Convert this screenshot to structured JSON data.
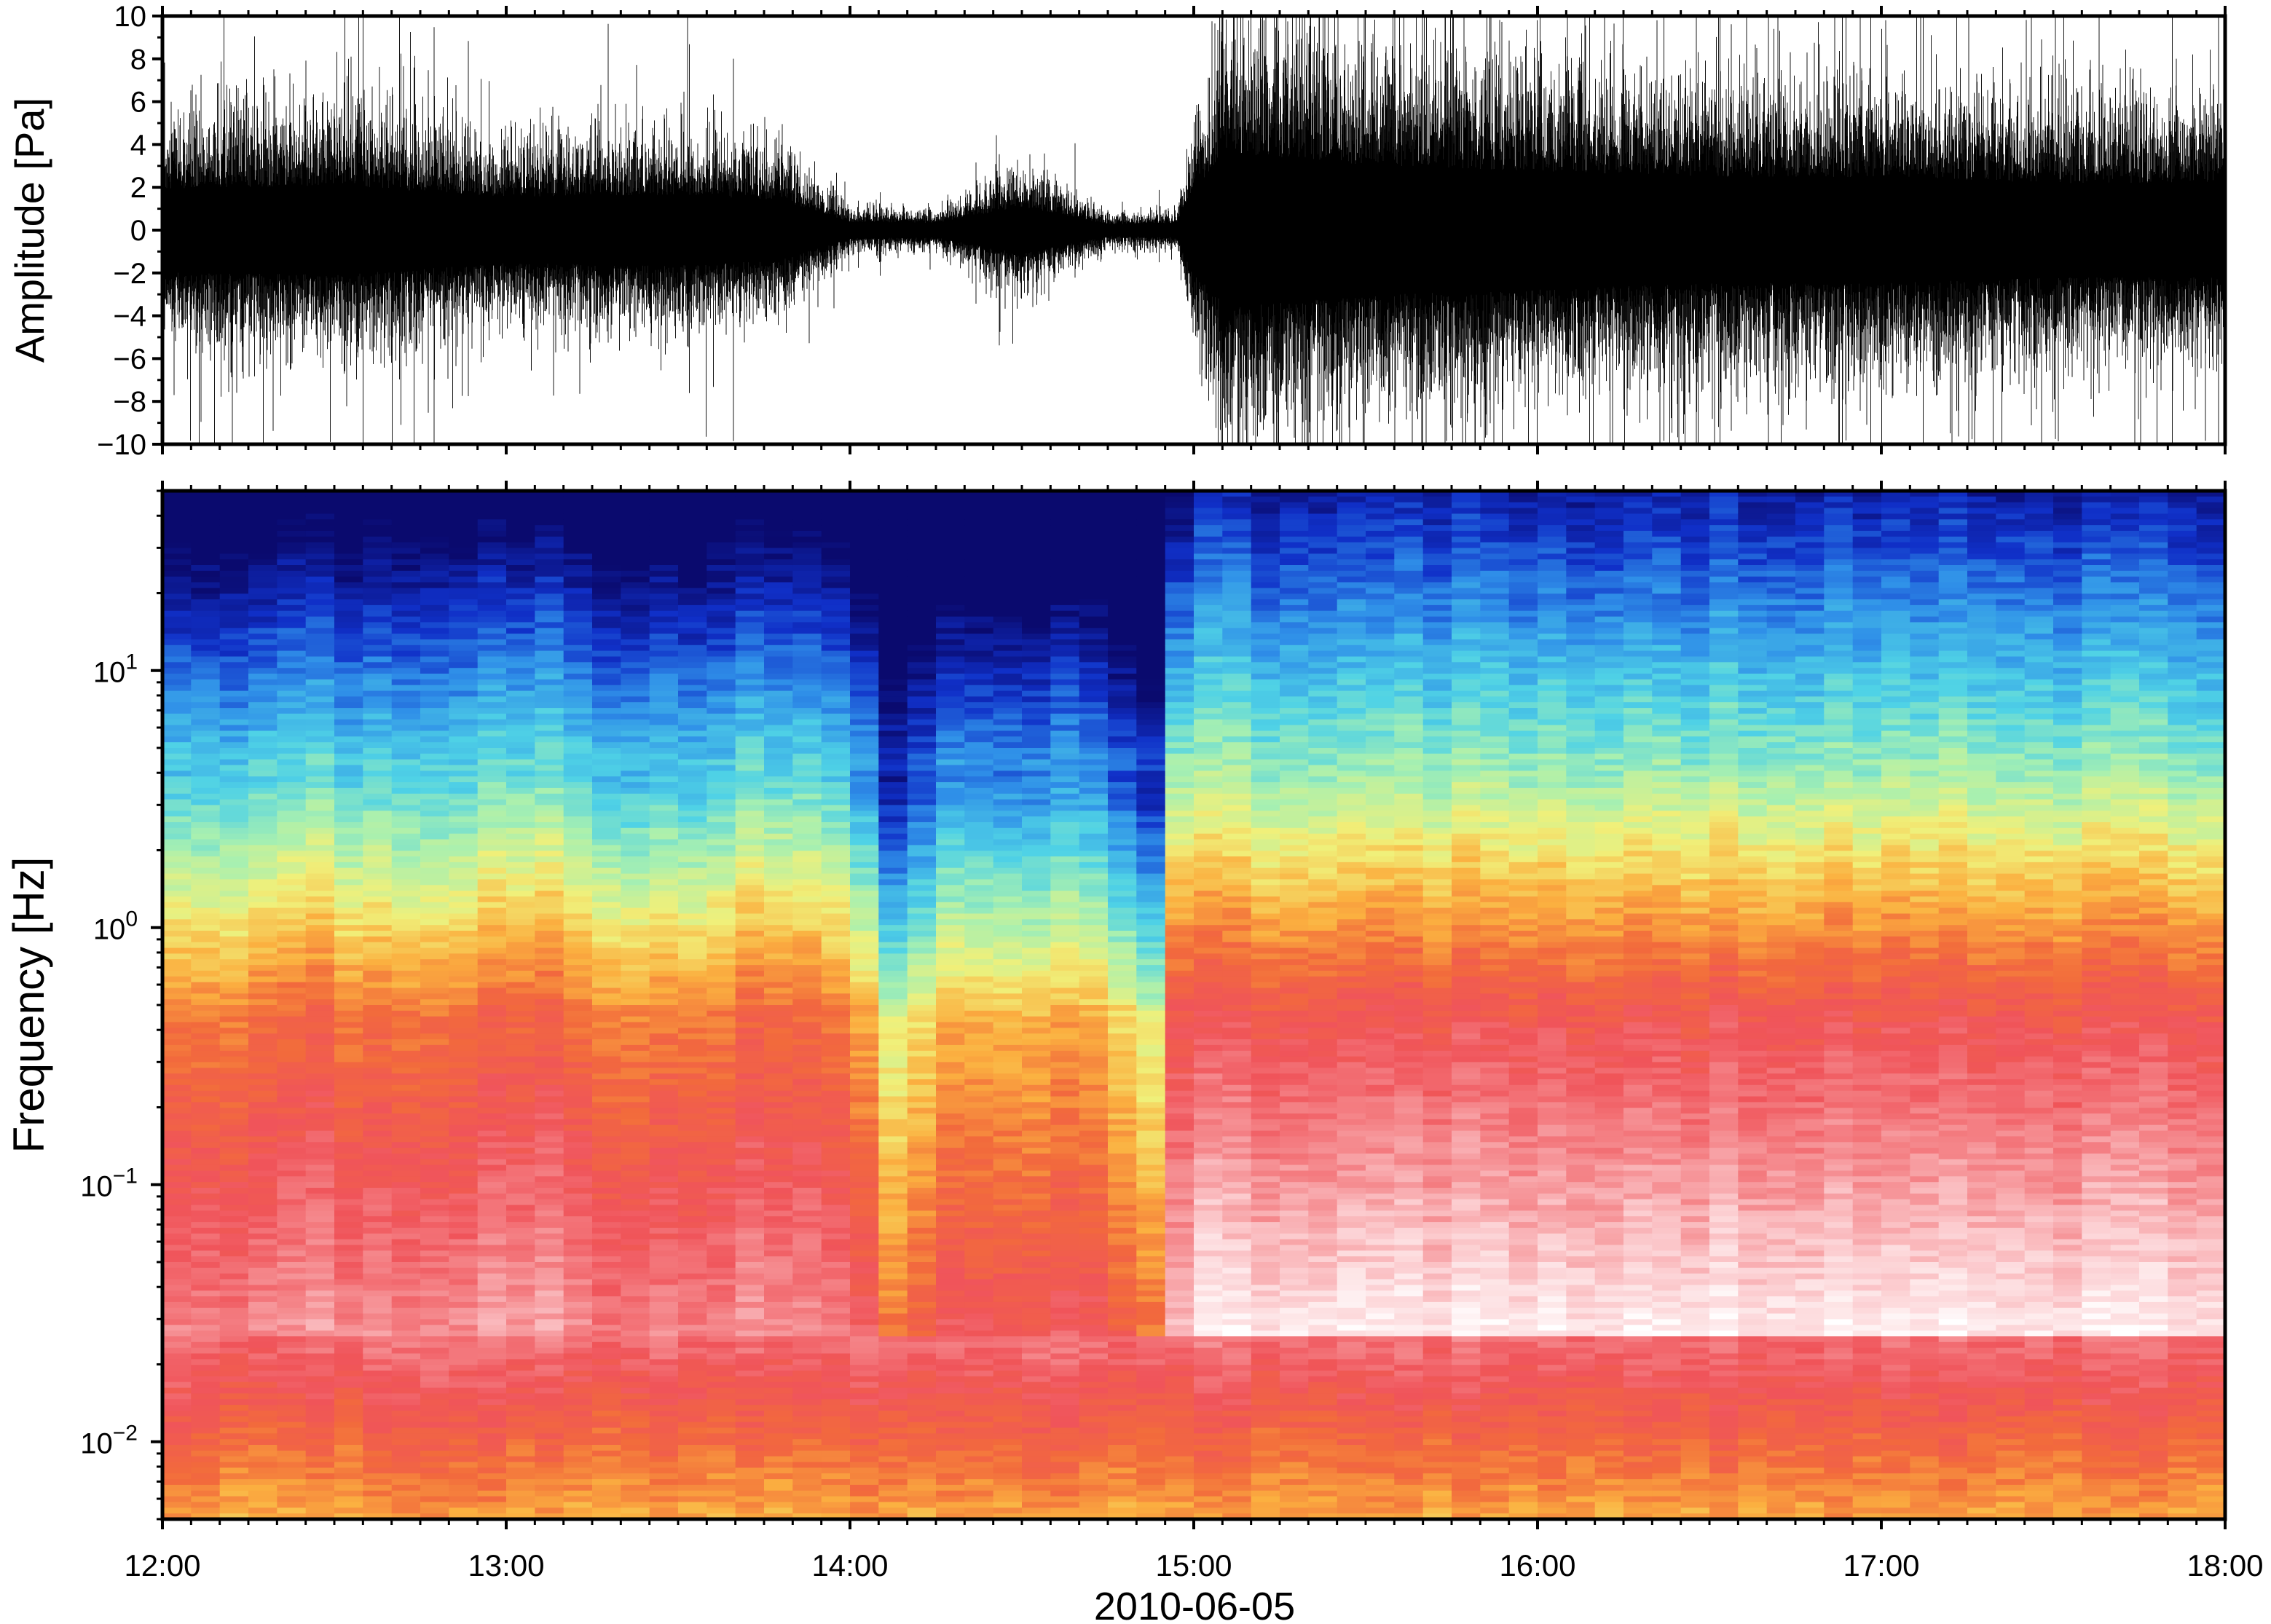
{
  "chart_data": [
    {
      "type": "line",
      "panel": "waveform",
      "ylabel": "Amplitude [Pa]",
      "ylim": [
        -10,
        10
      ],
      "yticks": [
        10,
        8,
        6,
        4,
        2,
        0,
        -2,
        -4,
        -6,
        -8,
        -10
      ],
      "ytick_labels": [
        "10",
        "8",
        "6",
        "4",
        "2",
        "0",
        "−2",
        "−4",
        "−6",
        "−8",
        "−10"
      ],
      "xlim": [
        "12:00",
        "18:00"
      ],
      "envelope_hours": [
        12.0,
        12.5,
        13.0,
        13.5,
        13.8,
        14.0,
        14.25,
        14.5,
        14.75,
        14.95,
        15.0,
        15.1,
        15.5,
        16.0,
        16.5,
        17.0,
        17.5,
        18.0
      ],
      "envelope_pa": [
        3.5,
        3.8,
        2.8,
        3.0,
        2.5,
        0.7,
        0.6,
        2.0,
        0.5,
        0.6,
        3.5,
        6.5,
        5.5,
        5.0,
        4.5,
        4.5,
        4.0,
        4.0
      ],
      "line_color": "#000000"
    },
    {
      "type": "heatmap",
      "panel": "spectrogram",
      "ylabel": "Frequency [Hz]",
      "xlabel": "2010-06-05",
      "y_scale": "log",
      "ylim": [
        0.005,
        50
      ],
      "yticks": [
        0.01,
        0.1,
        1,
        10
      ],
      "ytick_labels": [
        {
          "base": "10",
          "exp": "−2"
        },
        {
          "base": "10",
          "exp": "−1"
        },
        {
          "base": "10",
          "exp": "0"
        },
        {
          "base": "10",
          "exp": "1"
        }
      ],
      "xlim": [
        "12:00",
        "18:00"
      ],
      "xticks": [
        "12:00",
        "13:00",
        "14:00",
        "15:00",
        "16:00",
        "17:00",
        "18:00"
      ],
      "colormap": [
        "#0a0a6e",
        "#1030c8",
        "#2f8fe8",
        "#4fd2e6",
        "#a8f0b0",
        "#f0f07a",
        "#fbb040",
        "#f26a3c",
        "#f0545a",
        "#f58a8e",
        "#fccfd2",
        "#ffffff"
      ]
    }
  ]
}
